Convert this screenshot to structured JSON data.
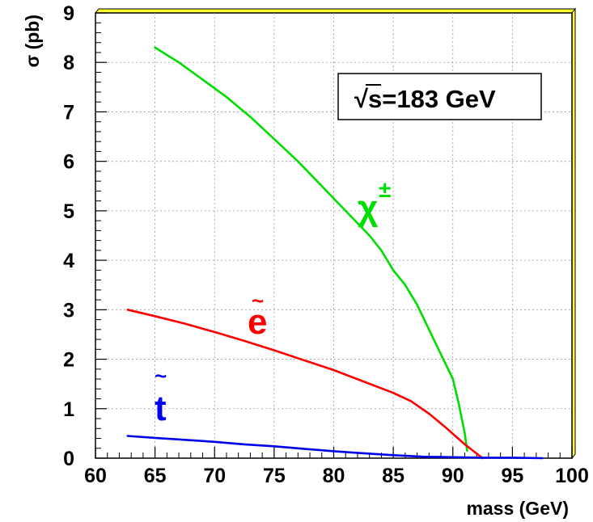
{
  "chart_data": {
    "type": "line",
    "xlabel": "mass (GeV)",
    "ylabel": "σ (pb)",
    "xlim": [
      60,
      100
    ],
    "ylim": [
      0,
      9
    ],
    "xticks": [
      "60",
      "65",
      "70",
      "75",
      "80",
      "85",
      "90",
      "95",
      "100"
    ],
    "yticks": [
      "0",
      "1",
      "2",
      "3",
      "4",
      "5",
      "6",
      "7",
      "8",
      "9"
    ],
    "grid": true,
    "annotation": {
      "sqrt": "√",
      "text": "s=183 GeV"
    },
    "series": [
      {
        "name": "χ±",
        "label_main": "χ",
        "label_sup": "±",
        "color": "#00dd00",
        "points": [
          [
            65,
            8.3
          ],
          [
            67,
            8.0
          ],
          [
            69,
            7.65
          ],
          [
            71,
            7.3
          ],
          [
            73,
            6.9
          ],
          [
            75,
            6.45
          ],
          [
            77,
            6.0
          ],
          [
            79,
            5.5
          ],
          [
            81,
            5.0
          ],
          [
            83,
            4.5
          ],
          [
            84,
            4.2
          ],
          [
            85,
            3.8
          ],
          [
            86,
            3.5
          ],
          [
            87,
            3.1
          ],
          [
            88,
            2.6
          ],
          [
            89,
            2.1
          ],
          [
            90,
            1.6
          ],
          [
            90.5,
            1.1
          ],
          [
            91,
            0.5
          ],
          [
            91.2,
            0.15
          ]
        ]
      },
      {
        "name": "ẽ",
        "label_main": "e",
        "label_tilde": "~",
        "color": "#ff0000",
        "points": [
          [
            62.7,
            3.0
          ],
          [
            65,
            2.87
          ],
          [
            67.5,
            2.72
          ],
          [
            70,
            2.55
          ],
          [
            72.5,
            2.37
          ],
          [
            75,
            2.18
          ],
          [
            77.5,
            1.98
          ],
          [
            80,
            1.78
          ],
          [
            82.5,
            1.55
          ],
          [
            85,
            1.32
          ],
          [
            86.5,
            1.15
          ],
          [
            88,
            0.9
          ],
          [
            89.5,
            0.6
          ],
          [
            91,
            0.28
          ],
          [
            92.5,
            0.0
          ]
        ]
      },
      {
        "name": "t̃",
        "label_main": "t",
        "label_tilde": "~",
        "color": "#0000ee",
        "points": [
          [
            62.7,
            0.45
          ],
          [
            65,
            0.41
          ],
          [
            67.5,
            0.37
          ],
          [
            70,
            0.33
          ],
          [
            72.5,
            0.28
          ],
          [
            75,
            0.24
          ],
          [
            77.5,
            0.19
          ],
          [
            80,
            0.14
          ],
          [
            82.5,
            0.1
          ],
          [
            85,
            0.06
          ],
          [
            87.5,
            0.03
          ],
          [
            90,
            0.02
          ],
          [
            92.5,
            0.01
          ],
          [
            95,
            0.01
          ],
          [
            97.5,
            0.0
          ]
        ]
      }
    ]
  }
}
